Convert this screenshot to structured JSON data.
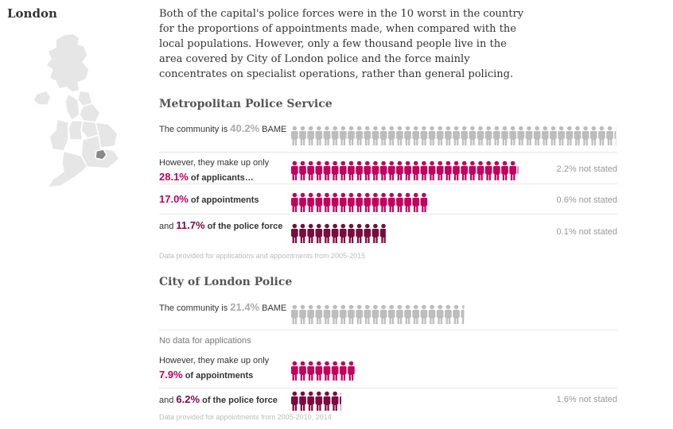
{
  "region": "London",
  "intro": "Both of the capital's police forces were in the 10 worst in the country for the proportions of appointments made, when compared with the local populations. However, only a few thousand people live in the area covered by City of London police and the force mainly concentrates on specialist operations, rather than general policing.",
  "colors": {
    "community": "#bdbdbd",
    "applicants": "#c1005e",
    "appointments": "#c1005e",
    "police_force": "#7b0b3f",
    "london_highlight": "#888888"
  },
  "icon": "person-icon",
  "forces": [
    {
      "title": "Metropolitan Police Service",
      "rows": [
        {
          "pre": "The community is ",
          "pct": "40.2%",
          "post": " BAME",
          "not_stated": ""
        },
        {
          "pre": "However, they make up only ",
          "pct": "28.1%",
          "post": " of applicants…",
          "not_stated": "2.2% not stated"
        },
        {
          "pre": "",
          "pct": "17.0%",
          "post": " of appointments",
          "not_stated": "0.6% not stated"
        },
        {
          "pre": "and ",
          "pct": "11.7%",
          "post": " of the police force",
          "not_stated": "0.1% not stated"
        }
      ],
      "note": "Data provided for applications and appointments from 2005-2015"
    },
    {
      "title": "City of London Police",
      "rows": [
        {
          "pre": "The community is ",
          "pct": "21.4%",
          "post": " BAME",
          "not_stated": ""
        },
        {
          "pre": "However, they make up only ",
          "pct": "7.9%",
          "post": " of appointments",
          "not_stated": ""
        },
        {
          "pre": "and ",
          "pct": "6.2%",
          "post": " of the police force",
          "not_stated": "1.6% not stated"
        }
      ],
      "no_data": "No data for applications",
      "note": "Data provided for appointments from 2005-2010, 2014"
    }
  ],
  "chart_data": {
    "type": "bar",
    "encoding": "isotype",
    "series": [
      {
        "name": "Metropolitan Police Service",
        "categories": [
          "Community BAME",
          "Applicants",
          "Appointments",
          "Police force"
        ],
        "values": [
          40.2,
          28.1,
          17.0,
          11.7
        ],
        "not_stated": [
          null,
          2.2,
          0.6,
          0.1
        ]
      },
      {
        "name": "City of London Police",
        "categories": [
          "Community BAME",
          "Appointments",
          "Police force"
        ],
        "values": [
          21.4,
          7.9,
          6.2
        ],
        "not_stated": [
          null,
          null,
          1.6
        ]
      }
    ]
  }
}
